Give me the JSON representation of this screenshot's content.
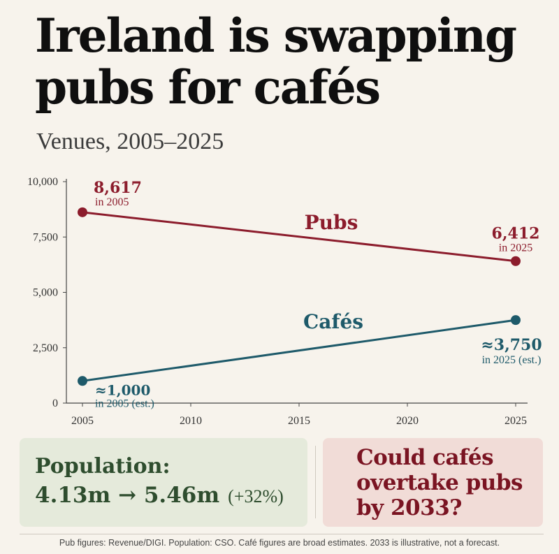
{
  "header": {
    "title_line1": "Ireland is swapping",
    "title_line2": "pubs for cafés",
    "subtitle": "Venues, 2005–2025"
  },
  "chart_data": {
    "type": "line",
    "x": [
      2005,
      2025
    ],
    "xticks": [
      2005,
      2010,
      2015,
      2020,
      2025
    ],
    "yticks": [
      0,
      2500,
      5000,
      7500,
      10000
    ],
    "ytick_labels": [
      "0",
      "2,500",
      "5,000",
      "7,500",
      "10,000"
    ],
    "xlim": [
      2005,
      2025
    ],
    "ylim": [
      0,
      10000
    ],
    "grid": false,
    "series": [
      {
        "name": "Pubs",
        "color": "#8c1c2c",
        "values": [
          8617,
          6412
        ],
        "start_label": {
          "value": "8,617",
          "note": "in 2005"
        },
        "end_label": {
          "value": "6,412",
          "note": "in 2025"
        }
      },
      {
        "name": "Cafés",
        "color": "#1e5a6a",
        "values": [
          1000,
          3750
        ],
        "start_label": {
          "value": "≈1,000",
          "note": "in 2005 (est.)"
        },
        "end_label": {
          "value": "≈3,750",
          "note": "in 2025 (est.)"
        }
      }
    ]
  },
  "population": {
    "label": "Population:",
    "value": "4.13m → 5.46m",
    "change": "(+32%)"
  },
  "question": {
    "line1": "Could cafés",
    "line2": "overtake pubs",
    "line3": "by 2033?"
  },
  "footnote": "Pub figures: Revenue/DIGI. Population: CSO. Café figures are broad estimates. 2033 is illustrative, not a forecast.",
  "colors": {
    "pubs": "#8c1c2c",
    "cafes": "#1e5a6a",
    "population": "#2e4d2e",
    "question": "#7a1422"
  }
}
